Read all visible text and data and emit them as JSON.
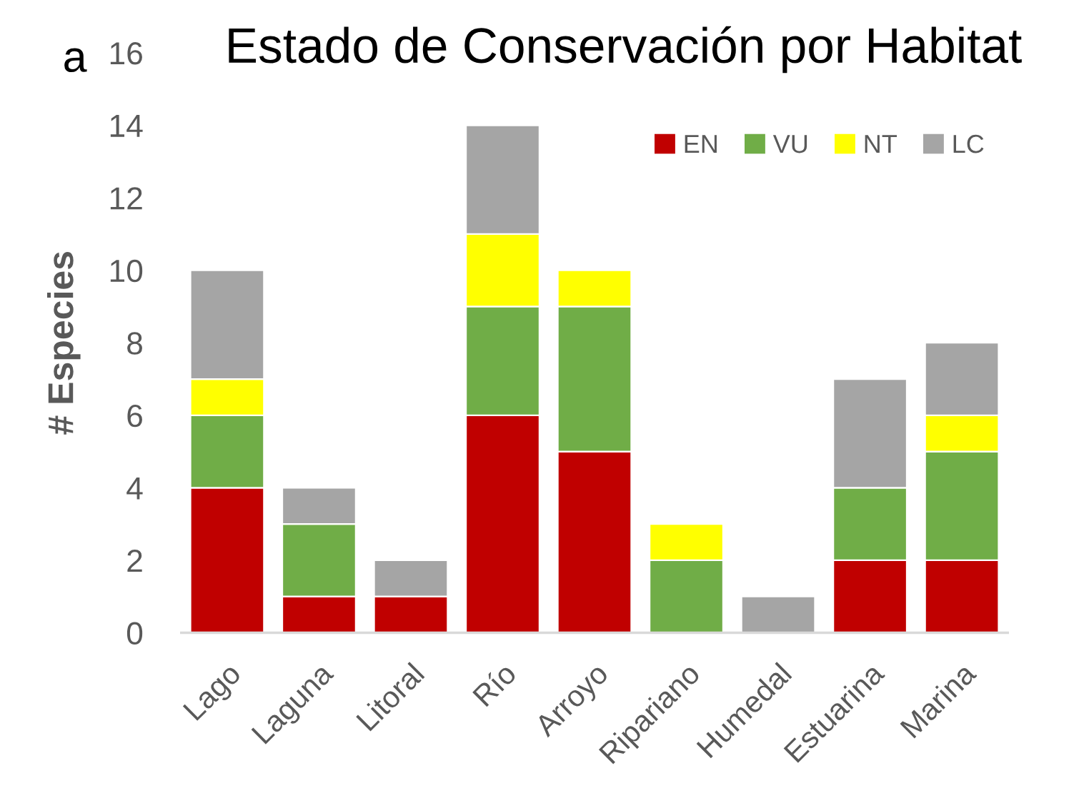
{
  "chart_data": {
    "type": "bar",
    "title": "Estado de Conservación por Habitat",
    "ylabel": "# Especies",
    "annotations": [
      "a"
    ],
    "categories": [
      "Lago",
      "Laguna",
      "Litoral",
      "Río",
      "Arroyo",
      "Ripariano",
      "Humedal",
      "Estuarina",
      "Marina"
    ],
    "series": [
      {
        "name": "EN",
        "color": "#c00000",
        "values": [
          4,
          1,
          1,
          6,
          5,
          0,
          0,
          2,
          2
        ]
      },
      {
        "name": "VU",
        "color": "#70ad47",
        "values": [
          2,
          2,
          0,
          3,
          4,
          2,
          0,
          2,
          3
        ]
      },
      {
        "name": "NT",
        "color": "#ffff00",
        "values": [
          1,
          0,
          0,
          2,
          1,
          1,
          0,
          0,
          1
        ]
      },
      {
        "name": "LC",
        "color": "#a5a5a5",
        "values": [
          3,
          1,
          1,
          3,
          0,
          0,
          1,
          3,
          2
        ]
      }
    ],
    "stacked": true,
    "ylim": [
      0,
      16
    ],
    "yticks": [
      0,
      2,
      4,
      6,
      8,
      10,
      12,
      14,
      16
    ],
    "grid": false,
    "legend": "top right"
  }
}
